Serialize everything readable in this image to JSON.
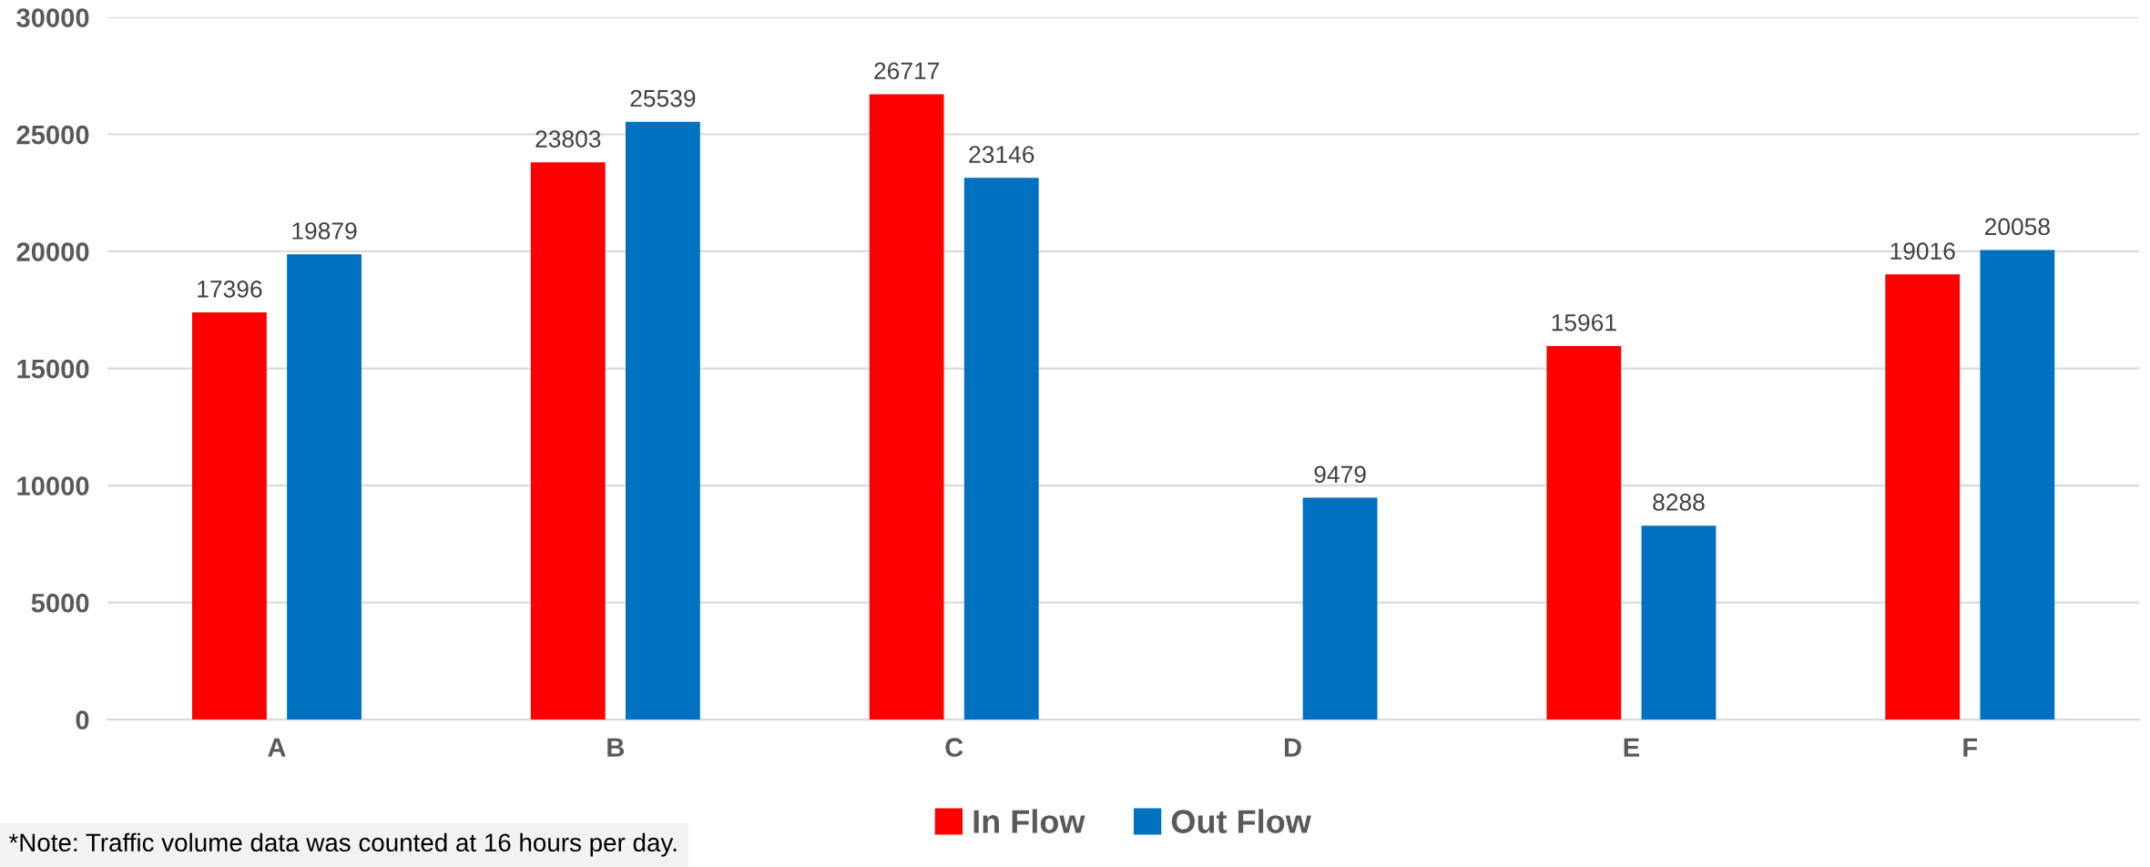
{
  "chart_data": {
    "type": "bar",
    "categories": [
      "A",
      "B",
      "C",
      "D",
      "E",
      "F"
    ],
    "series": [
      {
        "name": "In Flow",
        "color": "#ff0000",
        "values": [
          17396,
          23803,
          26717,
          null,
          15961,
          19016
        ]
      },
      {
        "name": "Out Flow",
        "color": "#0070c0",
        "values": [
          19879,
          25539,
          23146,
          9479,
          8288,
          20058
        ]
      }
    ],
    "ylim": [
      0,
      30000
    ],
    "yticks": [
      0,
      5000,
      10000,
      15000,
      20000,
      25000,
      30000
    ],
    "grid": "y",
    "legend": "bottom",
    "data_labels": true,
    "annotations": [
      "*Note: Traffic volume data was counted at 16 hours per day."
    ]
  }
}
